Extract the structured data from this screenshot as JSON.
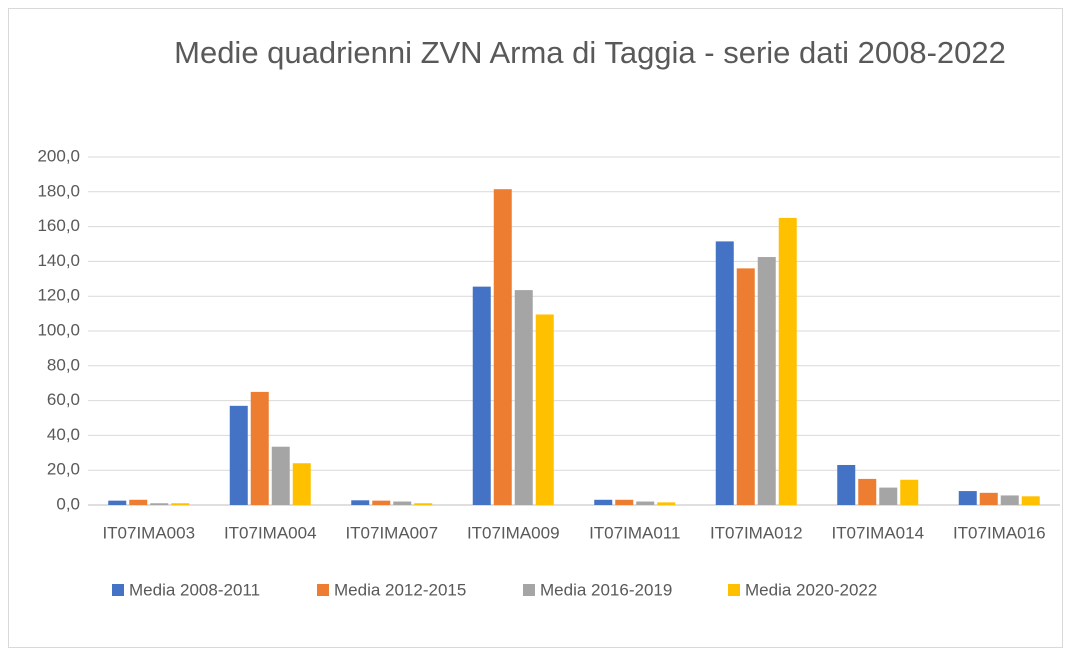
{
  "chart_data": {
    "type": "bar",
    "title": "Medie quadrienni  ZVN Arma di Taggia - serie dati 2008-2022",
    "categories": [
      "IT07IMA003",
      "IT07IMA004",
      "IT07IMA007",
      "IT07IMA009",
      "IT07IMA011",
      "IT07IMA012",
      "IT07IMA014",
      "IT07IMA016"
    ],
    "series": [
      {
        "name": "Media 2008-2011",
        "color": "#4472c4",
        "values": [
          2.5,
          57,
          2.7,
          125.5,
          3,
          151.5,
          23,
          8
        ]
      },
      {
        "name": "Media 2012-2015",
        "color": "#ed7d31",
        "values": [
          3,
          65,
          2.5,
          181.5,
          3,
          136,
          15,
          7
        ]
      },
      {
        "name": "Media 2016-2019",
        "color": "#a5a5a5",
        "values": [
          1,
          33.5,
          2,
          123.5,
          2,
          142.5,
          10,
          5.5
        ]
      },
      {
        "name": "Media 2020-2022",
        "color": "#ffc000",
        "values": [
          1,
          24,
          1,
          109.5,
          1.5,
          165,
          14.5,
          5
        ]
      }
    ],
    "ylim": [
      0,
      200
    ],
    "yticks": [
      {
        "value": 0,
        "label": "0,0"
      },
      {
        "value": 20,
        "label": "20,0"
      },
      {
        "value": 40,
        "label": "40,0"
      },
      {
        "value": 60,
        "label": "60,0"
      },
      {
        "value": 80,
        "label": "80,0"
      },
      {
        "value": 100,
        "label": "100,0"
      },
      {
        "value": 120,
        "label": "120,0"
      },
      {
        "value": 140,
        "label": "140,0"
      },
      {
        "value": 160,
        "label": "160,0"
      },
      {
        "value": 180,
        "label": "180,0"
      },
      {
        "value": 200,
        "label": "200,0"
      }
    ],
    "grid": true,
    "legend": "bottom"
  }
}
